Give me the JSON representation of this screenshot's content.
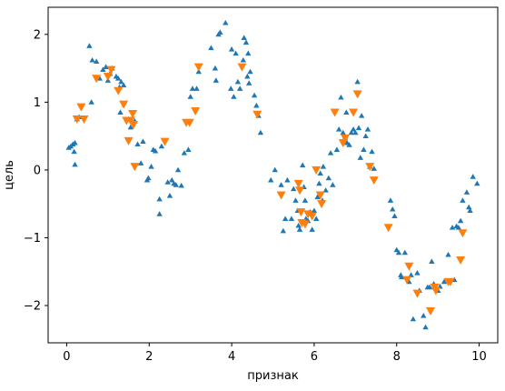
{
  "chart_data": {
    "type": "scatter",
    "xlabel": "признак",
    "ylabel": "цель",
    "xlim": [
      -0.45,
      10.45
    ],
    "ylim": [
      -2.55,
      2.4
    ],
    "xticks": [
      0,
      2,
      4,
      6,
      8,
      10
    ],
    "yticks": [
      -2,
      -1,
      0,
      1,
      2
    ],
    "tick_labels_x": [
      "0",
      "2",
      "4",
      "6",
      "8",
      "10"
    ],
    "tick_labels_y": [
      "−2",
      "−1",
      "0",
      "1",
      "2"
    ],
    "grid": false,
    "series": [
      {
        "marker": "triangle-up",
        "color": "#1f77b4",
        "points": [
          [
            0.05,
            0.33
          ],
          [
            0.1,
            0.35
          ],
          [
            0.15,
            0.38
          ],
          [
            0.2,
            0.4
          ],
          [
            0.18,
            0.27
          ],
          [
            0.2,
            0.08
          ],
          [
            0.25,
            0.75
          ],
          [
            0.3,
            0.78
          ],
          [
            0.55,
            1.83
          ],
          [
            0.6,
            1.0
          ],
          [
            0.62,
            1.62
          ],
          [
            0.72,
            1.6
          ],
          [
            0.8,
            1.35
          ],
          [
            0.88,
            1.48
          ],
          [
            0.95,
            1.52
          ],
          [
            1.0,
            1.32
          ],
          [
            1.05,
            1.42
          ],
          [
            1.1,
            1.5
          ],
          [
            1.2,
            1.38
          ],
          [
            1.25,
            1.35
          ],
          [
            1.28,
            1.22
          ],
          [
            1.32,
            1.3
          ],
          [
            1.38,
            1.25
          ],
          [
            1.3,
            0.85
          ],
          [
            1.5,
            0.75
          ],
          [
            1.55,
            0.63
          ],
          [
            1.65,
            0.72
          ],
          [
            1.72,
            0.38
          ],
          [
            1.85,
            0.42
          ],
          [
            1.8,
            0.1
          ],
          [
            1.95,
            -0.15
          ],
          [
            1.98,
            -0.12
          ],
          [
            2.05,
            0.05
          ],
          [
            2.1,
            0.3
          ],
          [
            2.15,
            0.28
          ],
          [
            2.25,
            -0.43
          ],
          [
            2.25,
            -0.65
          ],
          [
            2.3,
            0.35
          ],
          [
            2.45,
            -0.18
          ],
          [
            2.5,
            -0.38
          ],
          [
            2.55,
            -0.15
          ],
          [
            2.6,
            -0.2
          ],
          [
            2.65,
            -0.22
          ],
          [
            2.7,
            0.0
          ],
          [
            2.78,
            -0.23
          ],
          [
            2.85,
            0.25
          ],
          [
            2.95,
            0.3
          ],
          [
            3.0,
            1.08
          ],
          [
            3.05,
            1.2
          ],
          [
            3.15,
            1.2
          ],
          [
            3.2,
            1.45
          ],
          [
            3.5,
            1.8
          ],
          [
            3.6,
            1.5
          ],
          [
            3.62,
            1.32
          ],
          [
            3.68,
            2.0
          ],
          [
            3.72,
            2.03
          ],
          [
            3.85,
            2.17
          ],
          [
            4.0,
            1.78
          ],
          [
            3.98,
            1.2
          ],
          [
            4.05,
            1.08
          ],
          [
            4.1,
            1.72
          ],
          [
            4.15,
            1.3
          ],
          [
            4.2,
            1.2
          ],
          [
            4.28,
            1.62
          ],
          [
            4.3,
            1.95
          ],
          [
            4.35,
            1.88
          ],
          [
            4.4,
            1.72
          ],
          [
            4.45,
            1.45
          ],
          [
            4.38,
            1.38
          ],
          [
            4.42,
            1.28
          ],
          [
            4.55,
            1.1
          ],
          [
            4.6,
            0.95
          ],
          [
            4.65,
            0.8
          ],
          [
            4.7,
            0.55
          ],
          [
            4.95,
            -0.15
          ],
          [
            5.05,
            0.0
          ],
          [
            5.2,
            -0.22
          ],
          [
            5.25,
            -0.9
          ],
          [
            5.3,
            -0.72
          ],
          [
            5.35,
            -0.15
          ],
          [
            5.45,
            -0.72
          ],
          [
            5.5,
            -0.28
          ],
          [
            5.55,
            -0.45
          ],
          [
            5.6,
            -0.6
          ],
          [
            5.62,
            -0.82
          ],
          [
            5.65,
            -0.88
          ],
          [
            5.72,
            0.07
          ],
          [
            5.75,
            -0.25
          ],
          [
            5.78,
            -0.45
          ],
          [
            5.8,
            -0.72
          ],
          [
            5.85,
            -0.75
          ],
          [
            5.9,
            -0.62
          ],
          [
            5.95,
            -0.88
          ],
          [
            6.0,
            -0.6
          ],
          [
            6.05,
            -0.72
          ],
          [
            6.08,
            -0.4
          ],
          [
            6.12,
            -0.2
          ],
          [
            6.15,
            -0.05
          ],
          [
            6.2,
            -0.45
          ],
          [
            6.22,
            0.05
          ],
          [
            6.28,
            -0.3
          ],
          [
            6.35,
            -0.12
          ],
          [
            6.4,
            0.25
          ],
          [
            6.45,
            -0.22
          ],
          [
            6.55,
            0.3
          ],
          [
            6.6,
            0.6
          ],
          [
            6.65,
            1.07
          ],
          [
            6.7,
            0.55
          ],
          [
            6.75,
            0.48
          ],
          [
            6.78,
            0.85
          ],
          [
            6.8,
            0.4
          ],
          [
            6.85,
            0.37
          ],
          [
            6.9,
            0.55
          ],
          [
            6.95,
            0.6
          ],
          [
            7.0,
            0.55
          ],
          [
            7.05,
            1.3
          ],
          [
            7.08,
            0.62
          ],
          [
            7.12,
            0.18
          ],
          [
            7.15,
            0.8
          ],
          [
            7.2,
            0.3
          ],
          [
            7.25,
            0.5
          ],
          [
            7.3,
            0.6
          ],
          [
            7.35,
            0.05
          ],
          [
            7.4,
            0.27
          ],
          [
            7.45,
            0.02
          ],
          [
            7.85,
            -0.45
          ],
          [
            7.9,
            -0.58
          ],
          [
            7.95,
            -0.68
          ],
          [
            8.0,
            -1.18
          ],
          [
            8.05,
            -1.22
          ],
          [
            8.1,
            -1.55
          ],
          [
            8.12,
            -1.58
          ],
          [
            8.2,
            -1.22
          ],
          [
            8.3,
            -1.65
          ],
          [
            8.35,
            -1.55
          ],
          [
            8.4,
            -2.2
          ],
          [
            8.5,
            -1.52
          ],
          [
            8.55,
            -1.78
          ],
          [
            8.65,
            -2.15
          ],
          [
            8.7,
            -2.32
          ],
          [
            8.75,
            -1.73
          ],
          [
            8.8,
            -1.73
          ],
          [
            8.85,
            -1.35
          ],
          [
            8.9,
            -1.68
          ],
          [
            9.0,
            -1.78
          ],
          [
            9.05,
            -1.72
          ],
          [
            9.15,
            -1.65
          ],
          [
            9.25,
            -1.25
          ],
          [
            9.35,
            -0.85
          ],
          [
            9.4,
            -1.62
          ],
          [
            9.45,
            -0.83
          ],
          [
            9.5,
            -0.85
          ],
          [
            9.55,
            -0.75
          ],
          [
            9.6,
            -0.45
          ],
          [
            9.7,
            -0.33
          ],
          [
            9.75,
            -0.55
          ],
          [
            9.78,
            -0.6
          ],
          [
            9.85,
            -0.1
          ],
          [
            9.95,
            -0.2
          ]
        ]
      },
      {
        "marker": "triangle-down",
        "color": "#ff7f0e",
        "points": [
          [
            0.25,
            0.75
          ],
          [
            0.35,
            0.93
          ],
          [
            0.42,
            0.75
          ],
          [
            0.72,
            1.35
          ],
          [
            1.0,
            1.38
          ],
          [
            1.08,
            1.48
          ],
          [
            1.25,
            1.17
          ],
          [
            1.38,
            0.97
          ],
          [
            1.45,
            0.73
          ],
          [
            1.5,
            0.43
          ],
          [
            1.55,
            0.73
          ],
          [
            1.6,
            0.83
          ],
          [
            1.62,
            0.67
          ],
          [
            1.65,
            0.05
          ],
          [
            2.38,
            0.42
          ],
          [
            2.9,
            0.7
          ],
          [
            2.98,
            0.7
          ],
          [
            3.12,
            0.87
          ],
          [
            3.2,
            1.52
          ],
          [
            4.25,
            1.52
          ],
          [
            4.62,
            0.82
          ],
          [
            5.2,
            -0.37
          ],
          [
            5.62,
            -0.2
          ],
          [
            5.65,
            -0.3
          ],
          [
            5.68,
            -0.62
          ],
          [
            5.7,
            -0.78
          ],
          [
            5.78,
            -0.8
          ],
          [
            5.85,
            -0.65
          ],
          [
            5.95,
            -0.68
          ],
          [
            6.05,
            0.0
          ],
          [
            6.15,
            -0.37
          ],
          [
            6.18,
            -0.5
          ],
          [
            6.5,
            0.85
          ],
          [
            6.7,
            0.4
          ],
          [
            6.75,
            0.47
          ],
          [
            6.95,
            0.85
          ],
          [
            7.05,
            1.12
          ],
          [
            7.35,
            0.05
          ],
          [
            7.45,
            -0.15
          ],
          [
            7.8,
            -0.85
          ],
          [
            8.25,
            -1.62
          ],
          [
            8.3,
            -1.42
          ],
          [
            8.5,
            -1.82
          ],
          [
            8.82,
            -2.08
          ],
          [
            8.92,
            -1.73
          ],
          [
            8.95,
            -1.78
          ],
          [
            9.25,
            -1.65
          ],
          [
            9.3,
            -1.65
          ],
          [
            9.55,
            -1.33
          ],
          [
            9.6,
            -0.93
          ]
        ]
      }
    ]
  }
}
